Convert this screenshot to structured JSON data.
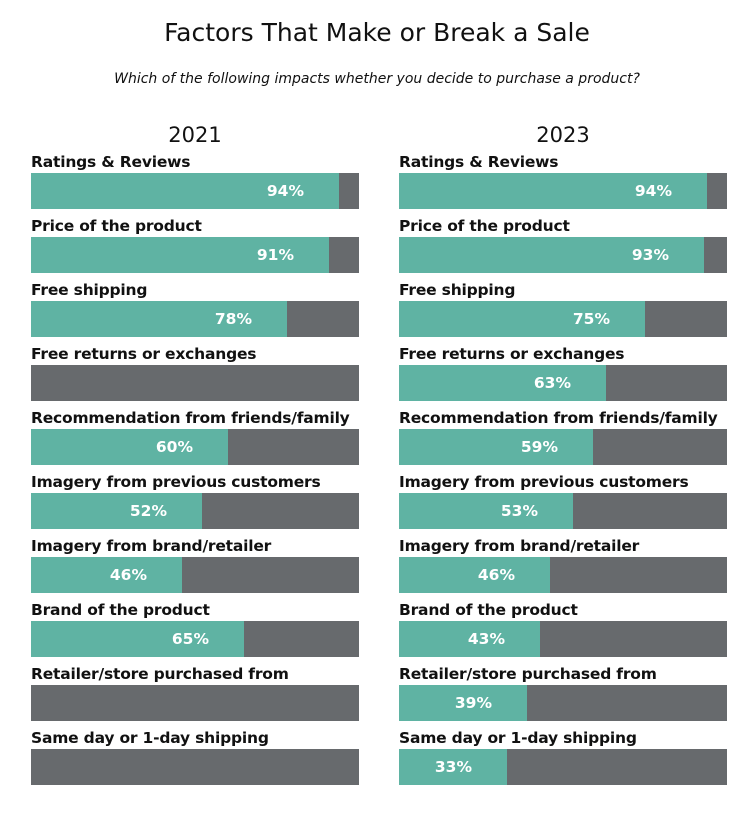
{
  "chart_data": {
    "type": "bar",
    "title": "Factors That Make or Break a Sale",
    "subtitle": "Which of the following impacts whether you decide to purchase a product?",
    "categories": [
      "Ratings & Reviews",
      "Price of the product",
      "Free shipping",
      "Free returns or exchanges",
      "Recommendation from friends/family",
      "Imagery from previous customers",
      "Imagery from brand/retailer",
      "Brand of the product",
      "Retailer/store purchased from",
      "Same day or 1-day shipping"
    ],
    "series": [
      {
        "name": "2021",
        "values": [
          94,
          91,
          78,
          null,
          60,
          52,
          46,
          65,
          null,
          null
        ],
        "labels": [
          "94%",
          "91%",
          "78%",
          "",
          "60%",
          "52%",
          "46%",
          "65%",
          "",
          ""
        ]
      },
      {
        "name": "2023",
        "values": [
          94,
          93,
          75,
          63,
          59,
          53,
          46,
          43,
          39,
          33
        ],
        "labels": [
          "94%",
          "93%",
          "75%",
          "63%",
          "59%",
          "53%",
          "46%",
          "43%",
          "39%",
          "33%"
        ]
      }
    ],
    "xlim": [
      0,
      100
    ],
    "colors": {
      "fill": "#5fb3a3",
      "track": "#676a6d"
    },
    "layout": "two side-by-side horizontal progress-bar panels"
  }
}
